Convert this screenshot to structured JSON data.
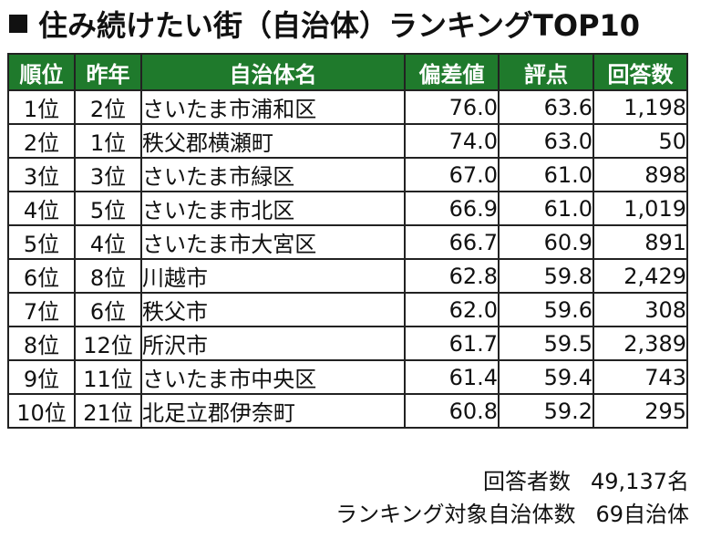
{
  "title": "住み続けたい街（自治体）ランキングTOP10",
  "table": {
    "headers": [
      "順位",
      "昨年",
      "自治体名",
      "偏差値",
      "評点",
      "回答数"
    ],
    "rows": [
      {
        "rank": "1位",
        "prev": "2位",
        "name": "さいたま市浦和区",
        "deviation": "76.0",
        "score": "63.6",
        "responses": "1,198"
      },
      {
        "rank": "2位",
        "prev": "1位",
        "name": "秩父郡横瀬町",
        "deviation": "74.0",
        "score": "63.0",
        "responses": "50"
      },
      {
        "rank": "3位",
        "prev": "3位",
        "name": "さいたま市緑区",
        "deviation": "67.0",
        "score": "61.0",
        "responses": "898"
      },
      {
        "rank": "4位",
        "prev": "5位",
        "name": "さいたま市北区",
        "deviation": "66.9",
        "score": "61.0",
        "responses": "1,019"
      },
      {
        "rank": "5位",
        "prev": "4位",
        "name": "さいたま市大宮区",
        "deviation": "66.7",
        "score": "60.9",
        "responses": "891"
      },
      {
        "rank": "6位",
        "prev": "8位",
        "name": "川越市",
        "deviation": "62.8",
        "score": "59.8",
        "responses": "2,429"
      },
      {
        "rank": "7位",
        "prev": "6位",
        "name": "秩父市",
        "deviation": "62.0",
        "score": "59.6",
        "responses": "308"
      },
      {
        "rank": "8位",
        "prev": "12位",
        "name": "所沢市",
        "deviation": "61.7",
        "score": "59.5",
        "responses": "2,389"
      },
      {
        "rank": "9位",
        "prev": "11位",
        "name": "さいたま市中央区",
        "deviation": "61.4",
        "score": "59.4",
        "responses": "743"
      },
      {
        "rank": "10位",
        "prev": "21位",
        "name": "北足立郡伊奈町",
        "deviation": "60.8",
        "score": "59.2",
        "responses": "295"
      }
    ]
  },
  "footer": {
    "respondents_label": "回答者数",
    "respondents_value": "49,137名",
    "targets_label": "ランキング対象自治体数",
    "targets_value": "69自治体"
  },
  "colors": {
    "header_bg": "#1f7a2c",
    "header_text": "#ffffff"
  }
}
